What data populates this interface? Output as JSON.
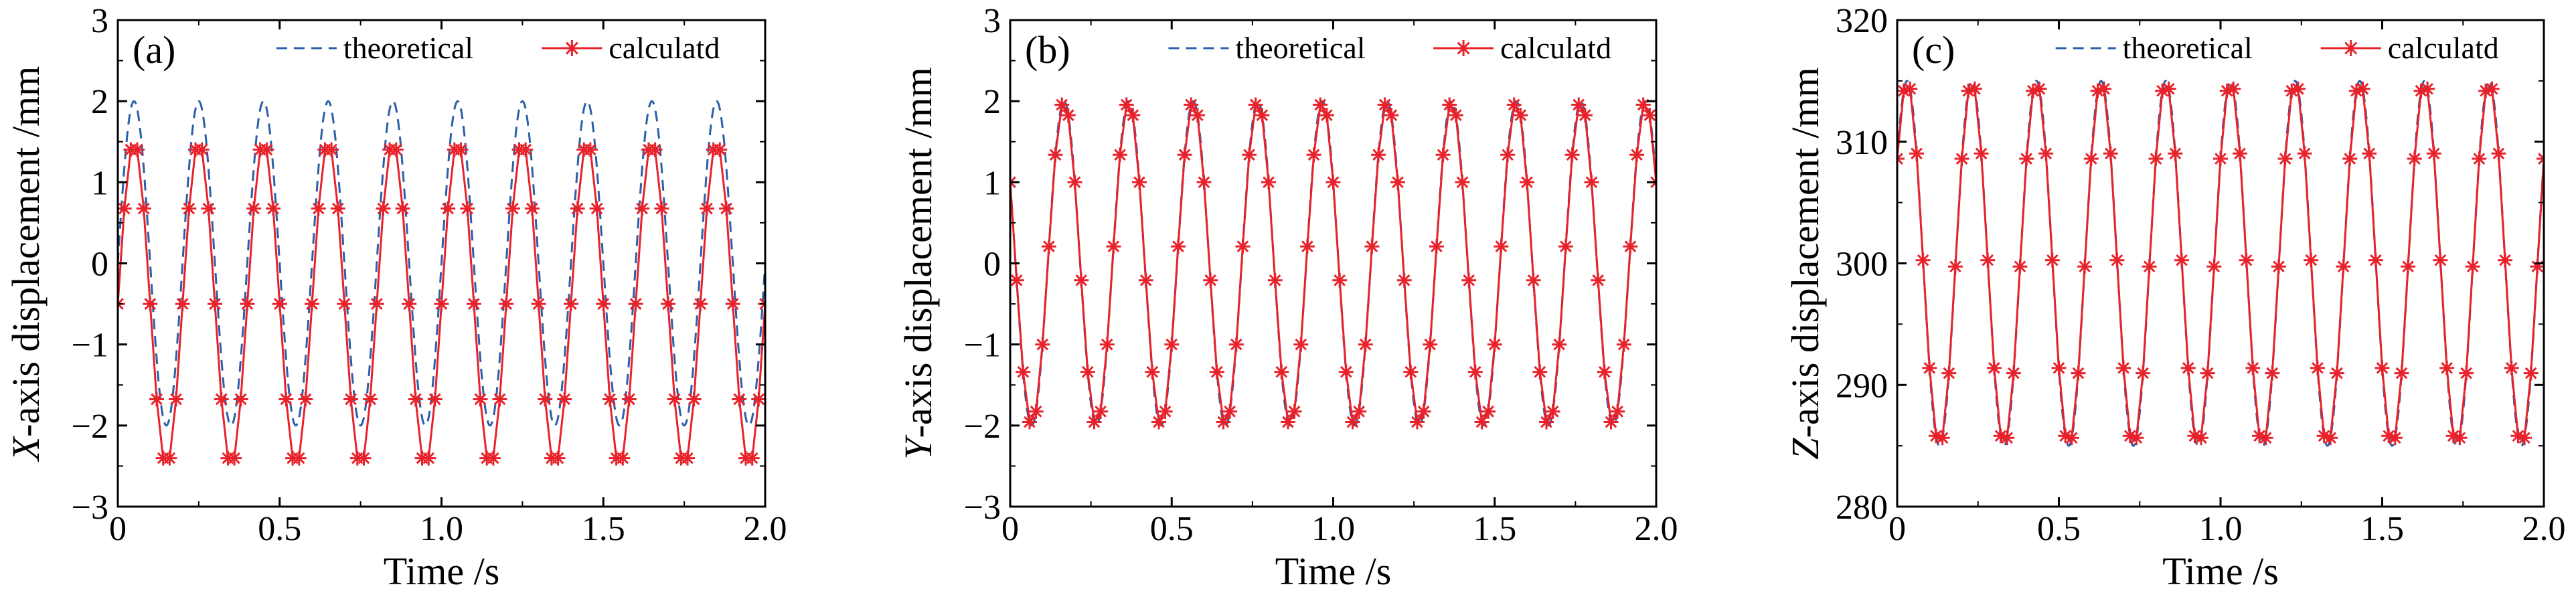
{
  "figure": {
    "colors": {
      "theoretical": "#2b5fa8",
      "calculated": "#e8222a",
      "axis": "#000000"
    }
  },
  "chart_data": [
    {
      "type": "line",
      "panel_label": "(a)",
      "xlabel": "Time /s",
      "ylabel_axis": "X",
      "ylabel_rest": "-axis displacement /mm",
      "xlim": [
        0,
        2.0
      ],
      "ylim": [
        -3,
        3
      ],
      "xticks": [
        0,
        0.5,
        1.0,
        1.5,
        2.0
      ],
      "xtick_labels": [
        "0",
        "0.5",
        "1.0",
        "1.5",
        "2.0"
      ],
      "yticks": [
        -3,
        -2,
        -1,
        0,
        1,
        2,
        3
      ],
      "ytick_labels": [
        "−3",
        "−2",
        "−1",
        "0",
        "1",
        "2",
        "3"
      ],
      "legend": [
        "theoretical",
        "calculatd"
      ],
      "legend_position": "top",
      "series": [
        {
          "name": "theoretical",
          "style": "dashed",
          "model": {
            "offset": 0,
            "amplitude": 2.0,
            "frequency": 5,
            "phase_deg": 0
          }
        },
        {
          "name": "calculatd",
          "style": "solid-star",
          "model": {
            "offset": -0.5,
            "amplitude": 2.0,
            "frequency": 5,
            "phase_deg": 0
          },
          "marker_step": 0.02
        }
      ]
    },
    {
      "type": "line",
      "panel_label": "(b)",
      "xlabel": "Time /s",
      "ylabel_axis": "Y",
      "ylabel_rest": "-axis displacement /mm",
      "xlim": [
        0,
        2.0
      ],
      "ylim": [
        -3,
        3
      ],
      "xticks": [
        0,
        0.5,
        1.0,
        1.5,
        2.0
      ],
      "xtick_labels": [
        "0",
        "0.5",
        "1.0",
        "1.5",
        "2.0"
      ],
      "yticks": [
        -3,
        -2,
        -1,
        0,
        1,
        2,
        3
      ],
      "ytick_labels": [
        "−3",
        "−2",
        "−1",
        "0",
        "1",
        "2",
        "3"
      ],
      "legend": [
        "theoretical",
        "calculatd"
      ],
      "legend_position": "top",
      "series": [
        {
          "name": "theoretical",
          "style": "dashed",
          "model": {
            "offset": 0,
            "amplitude": 2.0,
            "frequency": 5,
            "phase_deg": 150
          }
        },
        {
          "name": "calculatd",
          "style": "solid-star",
          "model": {
            "offset": 0,
            "amplitude": 2.0,
            "frequency": 5,
            "phase_deg": 150
          },
          "marker_step": 0.02
        }
      ]
    },
    {
      "type": "line",
      "panel_label": "(c)",
      "xlabel": "Time /s",
      "ylabel_axis": "Z",
      "ylabel_rest": "-axis displacement /mm",
      "xlim": [
        0,
        2.0
      ],
      "ylim": [
        280,
        320
      ],
      "xticks": [
        0,
        0.5,
        1.0,
        1.5,
        2.0
      ],
      "xtick_labels": [
        "0",
        "0.5",
        "1.0",
        "1.5",
        "2.0"
      ],
      "yticks": [
        280,
        290,
        300,
        310,
        320
      ],
      "ytick_labels": [
        "280",
        "290",
        "300",
        "310",
        "320"
      ],
      "legend": [
        "theoretical",
        "calculatd"
      ],
      "legend_position": "top",
      "series": [
        {
          "name": "theoretical",
          "style": "dashed",
          "model": {
            "offset": 300,
            "amplitude": 15,
            "frequency": 5,
            "phase_deg": 35
          }
        },
        {
          "name": "calculatd",
          "style": "solid-star",
          "model": {
            "offset": 300,
            "amplitude": 15,
            "frequency": 5,
            "phase_deg": 35
          },
          "marker_step": 0.02
        }
      ]
    }
  ]
}
